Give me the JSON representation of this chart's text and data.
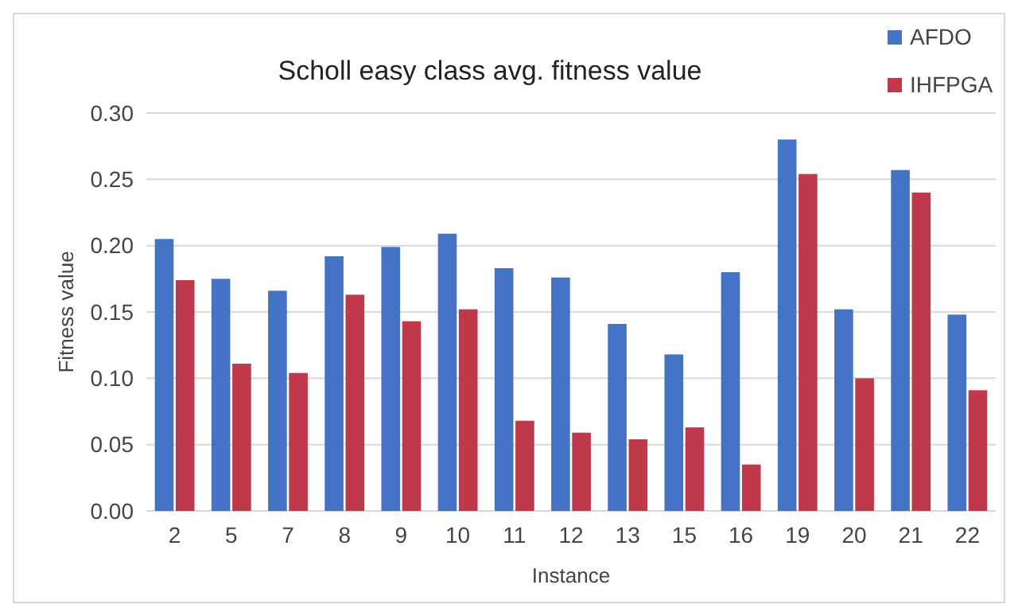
{
  "chart_data": {
    "type": "bar",
    "title": "Scholl easy class avg. fitness value",
    "xlabel": "Instance",
    "ylabel": "Fitness value",
    "categories": [
      "2",
      "5",
      "7",
      "8",
      "9",
      "10",
      "11",
      "12",
      "13",
      "15",
      "16",
      "19",
      "20",
      "21",
      "22"
    ],
    "series": [
      {
        "name": "AFDO",
        "color": "#4472c4",
        "values": [
          0.205,
          0.175,
          0.166,
          0.192,
          0.199,
          0.209,
          0.183,
          0.176,
          0.141,
          0.118,
          0.18,
          0.28,
          0.152,
          0.257,
          0.148
        ]
      },
      {
        "name": "IHFPGA",
        "color": "#c0394b",
        "values": [
          0.174,
          0.111,
          0.104,
          0.163,
          0.143,
          0.152,
          0.068,
          0.059,
          0.054,
          0.063,
          0.035,
          0.254,
          0.1,
          0.24,
          0.091
        ]
      }
    ],
    "ylim": [
      0,
      0.3
    ],
    "yticks": [
      {
        "value": 0,
        "label": "0.00"
      },
      {
        "value": 0.05,
        "label": "0.05"
      },
      {
        "value": 0.1,
        "label": "0.10"
      },
      {
        "value": 0.15,
        "label": "0.15"
      },
      {
        "value": 0.2,
        "label": "0.20"
      },
      {
        "value": 0.25,
        "label": "0.25"
      },
      {
        "value": 0.3,
        "label": "0.30"
      }
    ],
    "grid": "y",
    "legend": "top right"
  }
}
